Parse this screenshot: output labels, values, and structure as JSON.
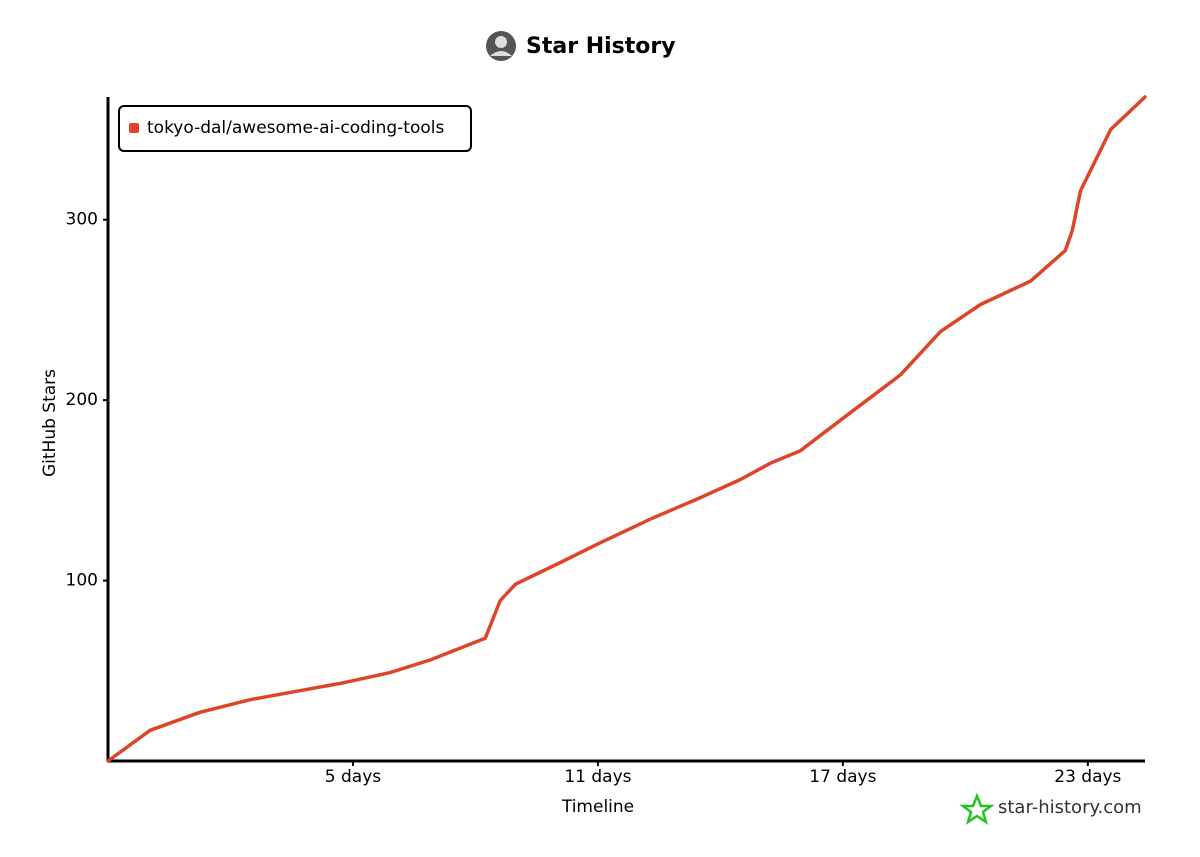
{
  "chart_data": {
    "type": "line",
    "title": "Star History",
    "xlabel": "Timeline",
    "ylabel": "GitHub Stars",
    "watermark": "star-history.com",
    "legend": "top-left",
    "x": [
      -1,
      0.03,
      1.25,
      2.48,
      3.95,
      4.69,
      5.91,
      6.89,
      8.24,
      8.61,
      8.98,
      10.08,
      11.06,
      12.28,
      13.51,
      14.49,
      15.22,
      15.96,
      17.18,
      18.41,
      19.39,
      20.37,
      21.6,
      22.45,
      22.62,
      22.82,
      23.56,
      24.4
    ],
    "series": [
      {
        "name": "tokyo-dal/awesome-ai-coding-tools",
        "color": "#dd4528",
        "values": [
          0,
          17,
          27,
          34,
          40,
          43,
          49,
          56,
          68,
          89,
          98,
          110,
          121,
          134,
          146,
          156,
          165,
          172,
          193,
          214,
          238,
          253,
          266,
          283,
          294,
          316,
          350,
          368
        ]
      }
    ],
    "xlim": [
      -1,
      24.4
    ],
    "xticks": [
      {
        "value": 5,
        "label": "5 days"
      },
      {
        "value": 11,
        "label": "11 days"
      },
      {
        "value": 17,
        "label": "17 days"
      },
      {
        "value": 23,
        "label": "23 days"
      }
    ],
    "ylim": [
      0,
      368
    ],
    "yticks": [
      100,
      200,
      300
    ],
    "grid": false
  }
}
